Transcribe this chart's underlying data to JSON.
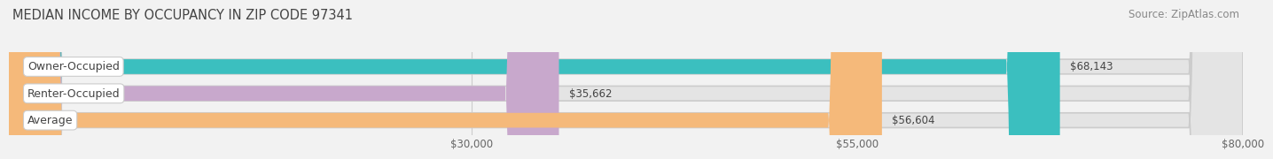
{
  "title": "MEDIAN INCOME BY OCCUPANCY IN ZIP CODE 97341",
  "source": "Source: ZipAtlas.com",
  "categories": [
    "Owner-Occupied",
    "Renter-Occupied",
    "Average"
  ],
  "values": [
    68143,
    35662,
    56604
  ],
  "bar_colors": [
    "#3bbfbf",
    "#c8a8cc",
    "#f5b97a"
  ],
  "bar_labels": [
    "$68,143",
    "$35,662",
    "$56,604"
  ],
  "xlim": [
    0,
    80000
  ],
  "xticks": [
    30000,
    55000,
    80000
  ],
  "xtick_labels": [
    "$30,000",
    "$55,000",
    "$80,000"
  ],
  "background_color": "#f2f2f2",
  "bar_bg_color": "#e4e4e4",
  "title_fontsize": 10.5,
  "source_fontsize": 8.5,
  "label_fontsize": 9,
  "value_fontsize": 8.5,
  "tick_fontsize": 8.5,
  "bar_height": 0.55,
  "fig_width": 14.06,
  "fig_height": 1.96
}
